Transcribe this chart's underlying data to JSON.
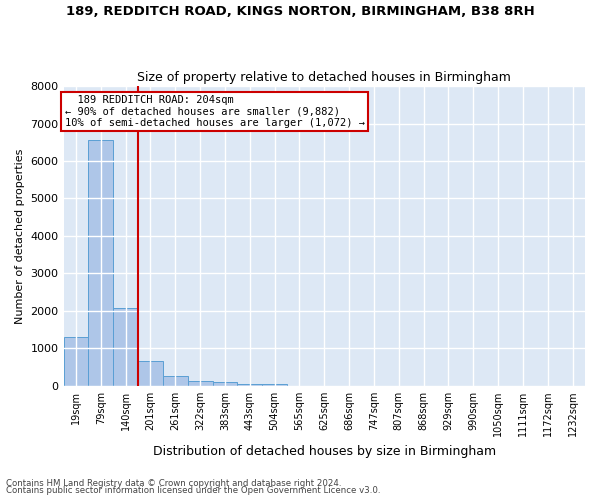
{
  "title1": "189, REDDITCH ROAD, KINGS NORTON, BIRMINGHAM, B38 8RH",
  "title2": "Size of property relative to detached houses in Birmingham",
  "xlabel": "Distribution of detached houses by size in Birmingham",
  "ylabel": "Number of detached properties",
  "footer1": "Contains HM Land Registry data © Crown copyright and database right 2024.",
  "footer2": "Contains public sector information licensed under the Open Government Licence v3.0.",
  "annotation_line1": "  189 REDDITCH ROAD: 204sqm  ",
  "annotation_line2": "← 90% of detached houses are smaller (9,882)",
  "annotation_line3": "10% of semi-detached houses are larger (1,072) →",
  "bar_labels": [
    "19sqm",
    "79sqm",
    "140sqm",
    "201sqm",
    "261sqm",
    "322sqm",
    "383sqm",
    "443sqm",
    "504sqm",
    "565sqm",
    "625sqm",
    "686sqm",
    "747sqm",
    "807sqm",
    "868sqm",
    "929sqm",
    "990sqm",
    "1050sqm",
    "1111sqm",
    "1172sqm",
    "1232sqm"
  ],
  "bar_values": [
    1300,
    6550,
    2080,
    660,
    250,
    140,
    90,
    55,
    55,
    0,
    0,
    0,
    0,
    0,
    0,
    0,
    0,
    0,
    0,
    0,
    0
  ],
  "bar_color": "#aec6e8",
  "bar_edge_color": "#5a9fd4",
  "vline_color": "#cc0000",
  "bg_color": "#dde8f5",
  "grid_color": "#ffffff",
  "ylim": [
    0,
    8000
  ],
  "yticks": [
    0,
    1000,
    2000,
    3000,
    4000,
    5000,
    6000,
    7000,
    8000
  ],
  "vline_pos": 2.5
}
